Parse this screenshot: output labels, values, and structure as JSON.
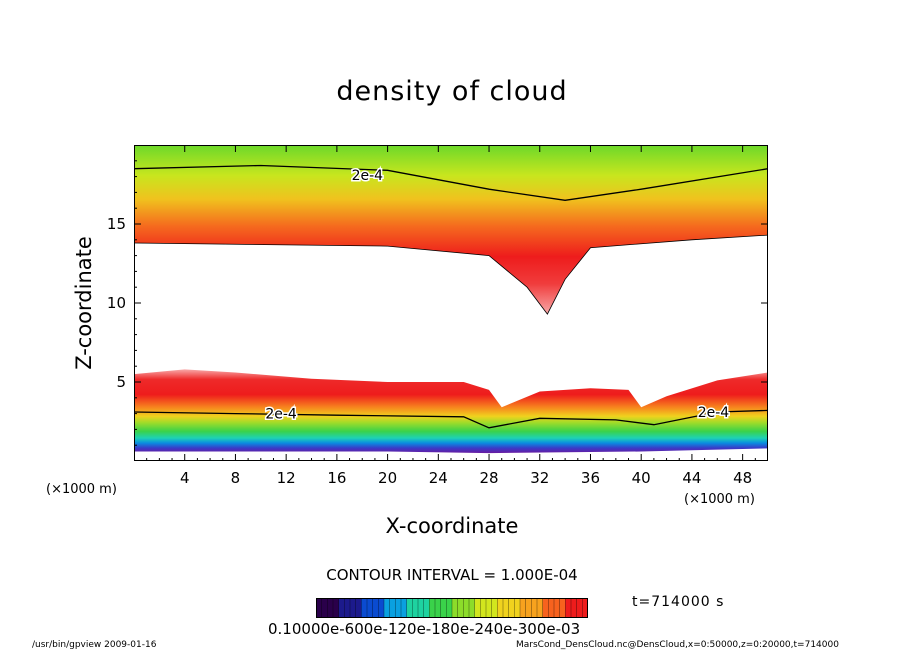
{
  "chart_data": {
    "type": "heatmap",
    "title": "density of cloud",
    "xlabel": "X-coordinate",
    "ylabel": "Z-coordinate",
    "x_unit": "(×1000 m)",
    "xlim": [
      0,
      50
    ],
    "ylim": [
      0,
      20
    ],
    "xticks": [
      4,
      8,
      12,
      16,
      20,
      24,
      28,
      32,
      36,
      40,
      44,
      48
    ],
    "yticks": [
      5,
      10,
      15
    ],
    "contour_interval": "CONTOUR INTERVAL = 1.000E-04",
    "contour_label": "2e-4",
    "contour_label_positions": [
      [
        18.4,
        18.1
      ],
      [
        11.6,
        3.0
      ],
      [
        45.7,
        3.1
      ]
    ],
    "time": "t=714000 s",
    "colorbar": {
      "labels_text": "0.10000e-600e-120e-180e-240e-300e-03",
      "colors": [
        "#2a004a",
        "#1c1a8c",
        "#0a4bd0",
        "#0aa0e0",
        "#1ed2a0",
        "#3ad24a",
        "#8cdc2a",
        "#d2e61e",
        "#f0d21e",
        "#f7a21e",
        "#f7621e",
        "#ee1c1c"
      ]
    },
    "upper_layer_top_contour": [
      [
        0,
        18.5
      ],
      [
        10,
        18.7
      ],
      [
        20,
        18.4
      ],
      [
        28,
        17.2
      ],
      [
        34,
        16.5
      ],
      [
        40,
        17.2
      ],
      [
        50,
        18.5
      ]
    ],
    "upper_layer_bottom": [
      [
        0,
        13.8
      ],
      [
        20,
        13.6
      ],
      [
        28,
        13.0
      ],
      [
        31,
        11.0
      ],
      [
        32.6,
        9.3
      ],
      [
        34,
        11.5
      ],
      [
        36,
        13.5
      ],
      [
        44,
        14.0
      ],
      [
        50,
        14.3
      ]
    ],
    "lower_layer_top": [
      [
        0,
        5.5
      ],
      [
        4,
        5.8
      ],
      [
        8,
        5.6
      ],
      [
        14,
        5.2
      ],
      [
        20,
        5.0
      ],
      [
        26,
        5.0
      ],
      [
        28,
        4.5
      ],
      [
        29,
        3.4
      ],
      [
        32,
        4.4
      ],
      [
        36,
        4.6
      ],
      [
        39,
        4.5
      ],
      [
        40,
        3.4
      ],
      [
        42,
        4.1
      ],
      [
        46,
        5.1
      ],
      [
        50,
        5.6
      ]
    ],
    "lower_contour_2e4": [
      [
        0,
        3.1
      ],
      [
        8,
        3.0
      ],
      [
        16,
        2.9
      ],
      [
        26,
        2.8
      ],
      [
        28,
        2.1
      ],
      [
        32,
        2.7
      ],
      [
        38,
        2.6
      ],
      [
        41,
        2.3
      ],
      [
        46,
        3.1
      ],
      [
        50,
        3.2
      ]
    ],
    "lower_layer_bottom": [
      [
        0,
        0.6
      ],
      [
        20,
        0.6
      ],
      [
        28,
        0.5
      ],
      [
        40,
        0.6
      ],
      [
        50,
        0.8
      ]
    ]
  },
  "footer": {
    "left": "/usr/bin/gpview  2009-01-16",
    "right": "MarsCond_DensCloud.nc@DensCloud,x=0:50000,z=0:20000,t=714000"
  }
}
